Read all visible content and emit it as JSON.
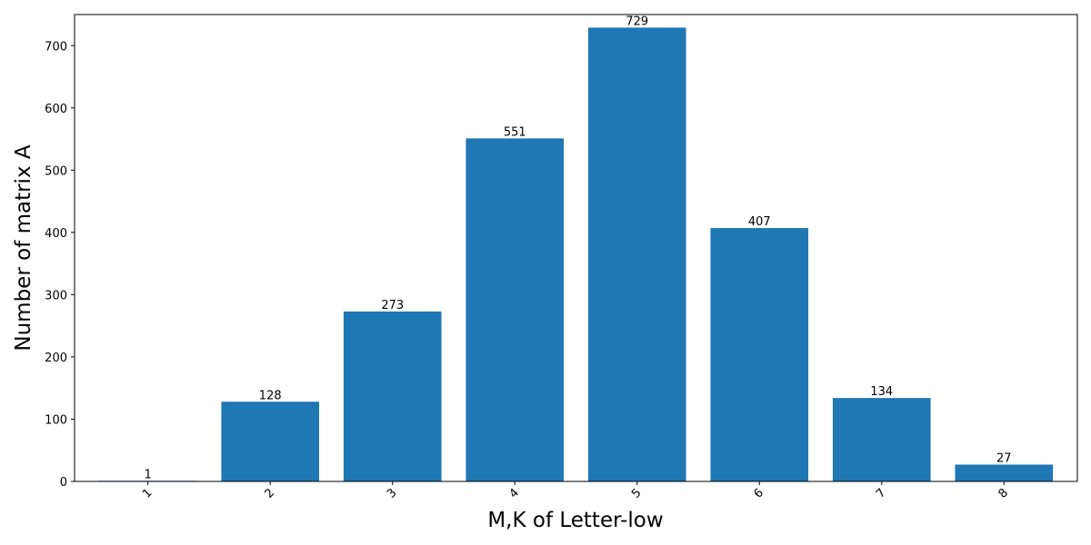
{
  "chart_data": {
    "type": "bar",
    "title": "",
    "xlabel": "M,K of Letter-low",
    "ylabel": "Number of matrix A",
    "categories": [
      "1",
      "2",
      "3",
      "4",
      "5",
      "6",
      "7",
      "8"
    ],
    "values": [
      1,
      128,
      273,
      551,
      729,
      407,
      134,
      27
    ],
    "data_labels": [
      "1",
      "128",
      "273",
      "551",
      "729",
      "407",
      "134",
      "27"
    ],
    "yticks": [
      0,
      100,
      200,
      300,
      400,
      500,
      600,
      700
    ],
    "ytick_labels": [
      "0",
      "100",
      "200",
      "300",
      "400",
      "500",
      "600",
      "700"
    ],
    "ylim": [
      0,
      750
    ],
    "x_tick_rotation": "45deg",
    "grid": false,
    "legend": "none",
    "bar_color": "#1f77b4"
  }
}
